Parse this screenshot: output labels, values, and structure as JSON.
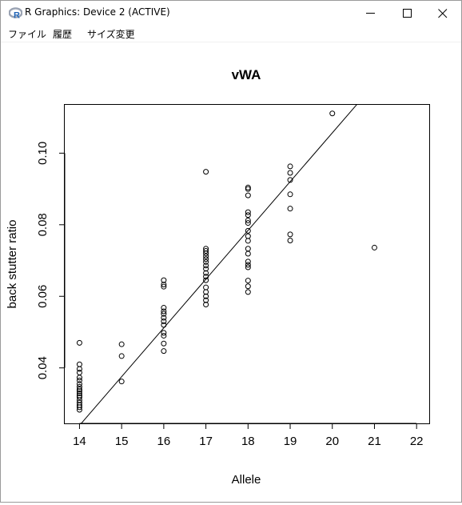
{
  "window": {
    "title": "R Graphics: Device 2 (ACTIVE)",
    "icon": "r-logo-icon",
    "controls": [
      "minimize-icon",
      "maximize-icon",
      "close-icon"
    ]
  },
  "menu": {
    "items": [
      "ファイル",
      "履歴",
      "サイズ変更"
    ]
  },
  "chart_data": {
    "type": "scatter",
    "title": "vWA",
    "xlabel": "Allele",
    "ylabel": "back stutter ratio",
    "xlim": [
      13.65,
      22.3
    ],
    "ylim": [
      0.0245,
      0.1135
    ],
    "xticks": [
      14,
      15,
      16,
      17,
      18,
      19,
      20,
      21,
      22
    ],
    "yticks": [
      0.04,
      0.06,
      0.08,
      0.1
    ],
    "ytick_labels": [
      "0.04",
      "0.06",
      "0.08",
      "0.10"
    ],
    "points": [
      [
        14,
        0.047
      ],
      [
        14,
        0.041
      ],
      [
        14,
        0.0397
      ],
      [
        14,
        0.0387
      ],
      [
        14,
        0.0373
      ],
      [
        14,
        0.0365
      ],
      [
        14,
        0.0355
      ],
      [
        14,
        0.0347
      ],
      [
        14,
        0.034
      ],
      [
        14,
        0.0335
      ],
      [
        14,
        0.0329
      ],
      [
        14,
        0.0323
      ],
      [
        14,
        0.0318
      ],
      [
        14,
        0.031
      ],
      [
        14,
        0.0303
      ],
      [
        14,
        0.0296
      ],
      [
        14,
        0.029
      ],
      [
        14,
        0.0283
      ],
      [
        15,
        0.0466
      ],
      [
        15,
        0.0433
      ],
      [
        15,
        0.0362
      ],
      [
        16,
        0.0645
      ],
      [
        16,
        0.0633
      ],
      [
        16,
        0.0627
      ],
      [
        16,
        0.0568
      ],
      [
        16,
        0.0558
      ],
      [
        16,
        0.0551
      ],
      [
        16,
        0.054
      ],
      [
        16,
        0.053
      ],
      [
        16,
        0.052
      ],
      [
        16,
        0.0498
      ],
      [
        16,
        0.049
      ],
      [
        16,
        0.0468
      ],
      [
        16,
        0.0447
      ],
      [
        17,
        0.0948
      ],
      [
        17,
        0.0733
      ],
      [
        17,
        0.0727
      ],
      [
        17,
        0.072
      ],
      [
        17,
        0.0712
      ],
      [
        17,
        0.0704
      ],
      [
        17,
        0.0696
      ],
      [
        17,
        0.0686
      ],
      [
        17,
        0.0677
      ],
      [
        17,
        0.0665
      ],
      [
        17,
        0.0655
      ],
      [
        17,
        0.0645
      ],
      [
        17,
        0.0625
      ],
      [
        17,
        0.0612
      ],
      [
        17,
        0.06
      ],
      [
        17,
        0.0589
      ],
      [
        17,
        0.0577
      ],
      [
        18,
        0.0904
      ],
      [
        18,
        0.09
      ],
      [
        18,
        0.0882
      ],
      [
        18,
        0.0835
      ],
      [
        18,
        0.0827
      ],
      [
        18,
        0.0812
      ],
      [
        18,
        0.0805
      ],
      [
        18,
        0.0783
      ],
      [
        18,
        0.0768
      ],
      [
        18,
        0.0755
      ],
      [
        18,
        0.0733
      ],
      [
        18,
        0.0719
      ],
      [
        18,
        0.0697
      ],
      [
        18,
        0.0688
      ],
      [
        18,
        0.0681
      ],
      [
        18,
        0.0644
      ],
      [
        18,
        0.0628
      ],
      [
        18,
        0.0612
      ],
      [
        19,
        0.0963
      ],
      [
        19,
        0.0945
      ],
      [
        19,
        0.0925
      ],
      [
        19,
        0.0885
      ],
      [
        19,
        0.0845
      ],
      [
        19,
        0.0773
      ],
      [
        19,
        0.0756
      ],
      [
        20,
        0.1111
      ],
      [
        21,
        0.0736
      ]
    ],
    "regression_line": {
      "intercept": -0.16683,
      "slope": 0.013625
    },
    "grid": false,
    "legend": "none"
  }
}
